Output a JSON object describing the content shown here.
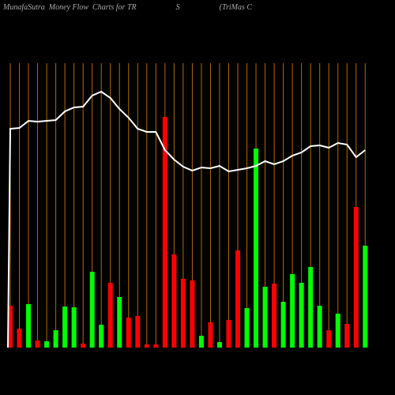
{
  "chart_data": {
    "type": "bar",
    "title": "MunafaSutra  Money Flow  Charts for TR                    S                    (TriMas C",
    "ylim": [
      0,
      360
    ],
    "values": [
      53,
      24,
      55,
      9,
      8,
      22,
      52,
      51,
      5,
      96,
      29,
      82,
      64,
      38,
      40,
      4,
      4,
      292,
      118,
      87,
      85,
      15,
      32,
      7,
      35,
      123,
      50,
      252,
      77,
      81,
      58,
      93,
      82,
      102,
      53,
      22,
      43,
      30,
      178,
      129
    ],
    "colors": [
      "#ff0000",
      "#ff0000",
      "#00ff00",
      "#ff0000",
      "#00ff00",
      "#00ff00",
      "#00ff00",
      "#00ff00",
      "#ff0000",
      "#00ff00",
      "#00ff00",
      "#ff0000",
      "#00ff00",
      "#ff0000",
      "#ff0000",
      "#ff0000",
      "#ff0000",
      "#ff0000",
      "#ff0000",
      "#ff0000",
      "#ff0000",
      "#00ff00",
      "#ff0000",
      "#00ff00",
      "#ff0000",
      "#ff0000",
      "#00ff00",
      "#00ff00",
      "#00ff00",
      "#ff0000",
      "#00ff00",
      "#00ff00",
      "#00ff00",
      "#00ff00",
      "#00ff00",
      "#ff0000",
      "#00ff00",
      "#ff0000",
      "#ff0000",
      "#00ff00"
    ],
    "line_values": [
      277,
      278,
      287,
      286,
      287,
      288,
      299,
      304,
      305,
      319,
      324,
      316,
      302,
      291,
      277,
      273,
      273,
      250,
      238,
      229,
      224,
      228,
      227,
      230,
      223,
      225,
      227,
      230,
      236,
      232,
      236,
      243,
      247,
      255,
      256,
      253,
      259,
      257,
      241,
      250
    ],
    "line_color": "#ffffff",
    "gridline_color": "#b36b00"
  }
}
